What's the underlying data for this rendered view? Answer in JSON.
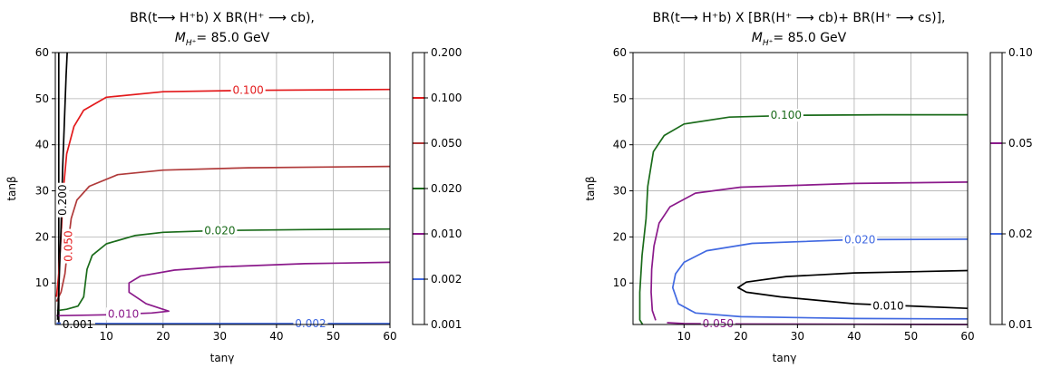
{
  "chart_data": [
    {
      "type": "contour",
      "title": [
        "BR(t⟶ H⁺b) X BR(H⁺ ⟶ cb),",
        "M_{H⁺}= 85.0 GeV"
      ],
      "title_line1": "BR(t⟶ H⁺b) X BR(H⁺ ⟶ cb),",
      "title_line2_prefix": "M",
      "title_line2_sub": "H⁺",
      "title_line2_suffix": "= 85.0 GeV",
      "xlabel": "tanγ",
      "ylabel": "tanβ",
      "xlim": [
        1,
        60
      ],
      "ylim": [
        1,
        60
      ],
      "xticks": [
        10,
        20,
        30,
        40,
        50,
        60
      ],
      "yticks": [
        10,
        20,
        30,
        40,
        50,
        60
      ],
      "grid": true,
      "colorbar": {
        "levels": [
          0.001,
          0.002,
          0.01,
          0.02,
          0.05,
          0.1,
          0.2
        ],
        "labels": [
          "0.001",
          "0.002",
          "0.010",
          "0.020",
          "0.050",
          "0.100",
          "0.200"
        ]
      },
      "contours": [
        {
          "level": "0.001",
          "color": "#000000",
          "points": [
            [
              1.6,
              60
            ],
            [
              1.6,
              1.0
            ]
          ]
        },
        {
          "level": "0.002",
          "color": "#4169e1",
          "points": [
            [
              1.2,
              1.3
            ],
            [
              10,
              1.2
            ],
            [
              30,
              1.2
            ],
            [
              60,
              1.2
            ]
          ]
        },
        {
          "level": "0.010",
          "color": "#8b1a8b",
          "points": [
            [
              1.2,
              2.9
            ],
            [
              10,
              3.1
            ],
            [
              18,
              3.5
            ],
            [
              21,
              3.9
            ],
            [
              17,
              5.5
            ],
            [
              14,
              8
            ],
            [
              14,
              10
            ],
            [
              16,
              11.5
            ],
            [
              22,
              12.8
            ],
            [
              30,
              13.5
            ],
            [
              45,
              14.2
            ],
            [
              60,
              14.5
            ]
          ]
        },
        {
          "level": "0.020",
          "color": "#1a6b1a",
          "points": [
            [
              1.3,
              4
            ],
            [
              3,
              4.3
            ],
            [
              5,
              5
            ],
            [
              6,
              7
            ],
            [
              6.3,
              10
            ],
            [
              6.6,
              13
            ],
            [
              7.5,
              16
            ],
            [
              10,
              18.5
            ],
            [
              15,
              20.3
            ],
            [
              20,
              21.0
            ],
            [
              30,
              21.4
            ],
            [
              45,
              21.6
            ],
            [
              60,
              21.7
            ]
          ]
        },
        {
          "level": "0.050",
          "color": "#b03a3a",
          "points": [
            [
              1.2,
              6
            ],
            [
              2,
              8
            ],
            [
              2.7,
              12
            ],
            [
              3.2,
              18
            ],
            [
              3.8,
              24
            ],
            [
              4.8,
              28
            ],
            [
              7,
              31
            ],
            [
              12,
              33.5
            ],
            [
              20,
              34.5
            ],
            [
              35,
              35.0
            ],
            [
              60,
              35.3
            ]
          ]
        },
        {
          "level": "0.100",
          "color": "#e31a1c",
          "points": [
            [
              1.2,
              7
            ],
            [
              1.6,
              12
            ],
            [
              2,
              20
            ],
            [
              2.4,
              30
            ],
            [
              3,
              38
            ],
            [
              4.3,
              44
            ],
            [
              6,
              47.5
            ],
            [
              10,
              50.3
            ],
            [
              20,
              51.5
            ],
            [
              35,
              51.8
            ],
            [
              60,
              52
            ]
          ]
        },
        {
          "level": "0.200",
          "color": "#000000",
          "points": [
            [
              1.4,
              2
            ],
            [
              1.6,
              8
            ],
            [
              1.8,
              15
            ],
            [
              2,
              22
            ],
            [
              2.3,
              35
            ],
            [
              2.6,
              45
            ],
            [
              2.9,
              55
            ],
            [
              3.1,
              60
            ]
          ]
        }
      ],
      "labels": [
        {
          "text": "0.100",
          "x": 35,
          "y": 51.8,
          "color": "#e31a1c"
        },
        {
          "text": "0.020",
          "x": 30,
          "y": 21.4,
          "color": "#1a6b1a"
        },
        {
          "text": "0.010",
          "x": 13,
          "y": 3.3,
          "color": "#8b1a8b"
        },
        {
          "text": "0.002",
          "x": 46,
          "y": 1.2,
          "color": "#4169e1"
        },
        {
          "text": "0.001",
          "x": 5,
          "y": 1.0,
          "color": "#000000"
        },
        {
          "text": "0.200",
          "x": 2.3,
          "y": 28,
          "color": "#000000",
          "rotate": true
        },
        {
          "text": "0.050",
          "x": 3.3,
          "y": 18,
          "color": "#e31a1c",
          "rotate": true
        }
      ]
    },
    {
      "type": "contour",
      "title": [
        "BR(t⟶ H⁺b) X [BR(H⁺ ⟶ cb)+ BR(H⁺ ⟶ cs)],",
        "M_{H⁺}= 85.0 GeV"
      ],
      "title_line1": "BR(t⟶ H⁺b) X [BR(H⁺ ⟶ cb)+ BR(H⁺ ⟶ cs)],",
      "title_line2_prefix": "M",
      "title_line2_sub": "H⁺",
      "title_line2_suffix": "= 85.0 GeV",
      "xlabel": "tanγ",
      "ylabel": "tanβ",
      "xlim": [
        1,
        60
      ],
      "ylim": [
        1,
        60
      ],
      "xticks": [
        10,
        20,
        30,
        40,
        50,
        60
      ],
      "yticks": [
        10,
        20,
        30,
        40,
        50,
        60
      ],
      "grid": true,
      "colorbar": {
        "levels": [
          0.01,
          0.02,
          0.05,
          0.1
        ],
        "labels": [
          "0.01",
          "0.02",
          "0.05",
          "0.10"
        ]
      },
      "contours": [
        {
          "level": "0.100",
          "color": "#1a6b1a",
          "points": [
            [
              2.7,
              1.0
            ],
            [
              2.2,
              2
            ],
            [
              2.2,
              8
            ],
            [
              2.6,
              16
            ],
            [
              3.3,
              24
            ],
            [
              3.6,
              31
            ],
            [
              4.6,
              38.5
            ],
            [
              6.5,
              42
            ],
            [
              10,
              44.5
            ],
            [
              18,
              46
            ],
            [
              30,
              46.4
            ],
            [
              45,
              46.5
            ],
            [
              60,
              46.5
            ]
          ]
        },
        {
          "level": "0.050",
          "color": "#8b1a8b",
          "points": [
            [
              5,
              1.9
            ],
            [
              4.4,
              4
            ],
            [
              4.2,
              8
            ],
            [
              4.3,
              13
            ],
            [
              4.7,
              18
            ],
            [
              5.6,
              23
            ],
            [
              7.5,
              26.5
            ],
            [
              12,
              29.5
            ],
            [
              20,
              30.8
            ],
            [
              40,
              31.6
            ],
            [
              60,
              31.9
            ]
          ]
        },
        {
          "level": "0.020",
          "color": "#4169e1",
          "points": [
            [
              60,
              2.2
            ],
            [
              40,
              2.3
            ],
            [
              20,
              2.7
            ],
            [
              12,
              3.5
            ],
            [
              9,
              5.5
            ],
            [
              8,
              9
            ],
            [
              8.5,
              12
            ],
            [
              10,
              14.5
            ],
            [
              14,
              17
            ],
            [
              22,
              18.6
            ],
            [
              40,
              19.4
            ],
            [
              60,
              19.5
            ]
          ]
        },
        {
          "level": "0.010",
          "color": "#000000",
          "points": [
            [
              60,
              4.5
            ],
            [
              40,
              5.5
            ],
            [
              27,
              7
            ],
            [
              21,
              8
            ],
            [
              19.5,
              9
            ],
            [
              21,
              10.2
            ],
            [
              28,
              11.4
            ],
            [
              40,
              12.2
            ],
            [
              60,
              12.7
            ]
          ]
        },
        {
          "level": "0.050",
          "color": "#8b1a8b",
          "points": [
            [
              7,
              1.4
            ],
            [
              10,
              1.2
            ],
            [
              20,
              1.1
            ],
            [
              40,
              1.05
            ],
            [
              60,
              1.0
            ]
          ]
        }
      ],
      "labels": [
        {
          "text": "0.100",
          "x": 28,
          "y": 46.4,
          "color": "#1a6b1a"
        },
        {
          "text": "0.020",
          "x": 41,
          "y": 19.4,
          "color": "#4169e1"
        },
        {
          "text": "0.010",
          "x": 46,
          "y": 5,
          "color": "#000000"
        },
        {
          "text": "0.050",
          "x": 16,
          "y": 1.2,
          "color": "#8b1a8b"
        }
      ]
    }
  ]
}
